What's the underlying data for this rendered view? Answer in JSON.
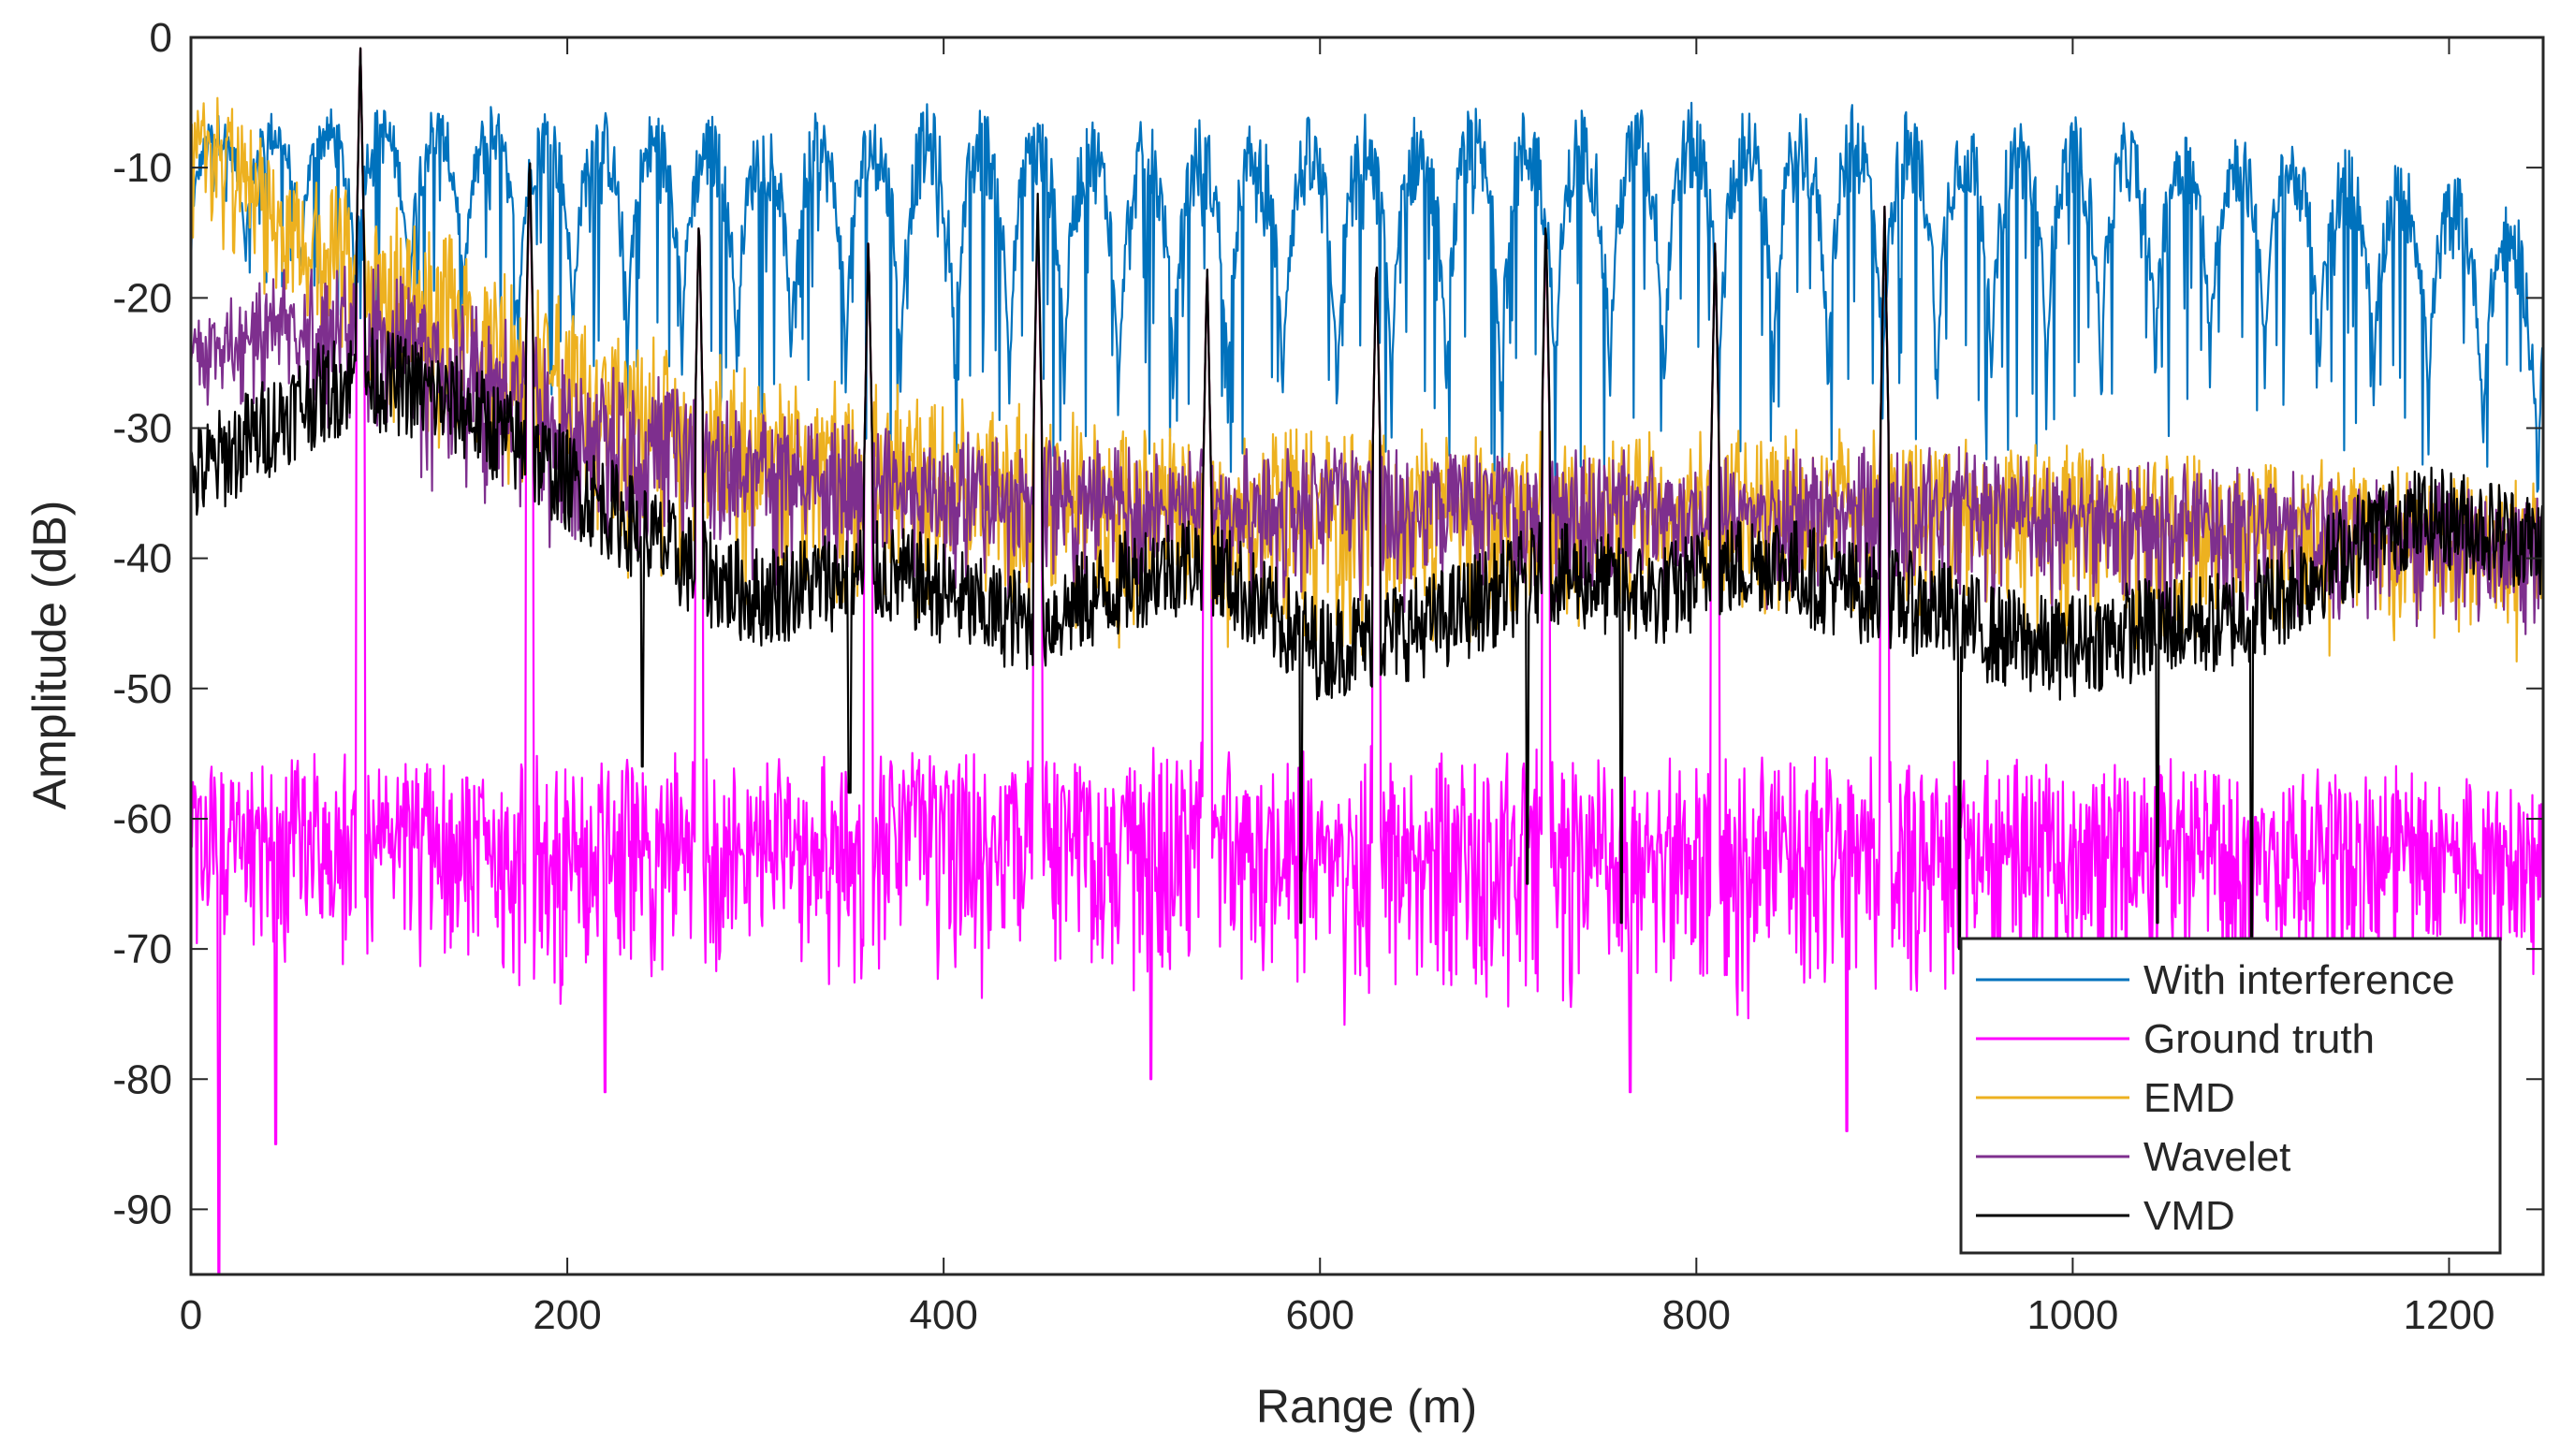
{
  "chart_data": {
    "type": "line",
    "title": "",
    "xlabel": "Range (m)",
    "ylabel": "Amplitude (dB)",
    "xlim": [
      0,
      1250
    ],
    "ylim": [
      -95,
      0
    ],
    "xticks": [
      0,
      200,
      400,
      600,
      800,
      1000,
      1200
    ],
    "xtick_labels": [
      "0",
      "200",
      "400",
      "600",
      "800",
      "1000",
      "1200"
    ],
    "yticks": [
      0,
      -10,
      -20,
      -30,
      -40,
      -50,
      -60,
      -70,
      -80,
      -90
    ],
    "ytick_labels": [
      "0",
      "-10",
      "-20",
      "-30",
      "-40",
      "-50",
      "-60",
      "-70",
      "-80",
      "-90"
    ],
    "grid": false,
    "legend_position": "bottom-right",
    "target_peaks_m": [
      90,
      180,
      270,
      360,
      450,
      540,
      630,
      720,
      810,
      900
    ],
    "series": [
      {
        "name": "With interference",
        "color": "#0072BD",
        "upper_envelope": {
          "x": [
            0,
            100,
            200,
            300,
            400,
            500,
            600,
            700,
            800,
            900,
            1000,
            1100,
            1200,
            1250
          ],
          "y": [
            -6,
            -5,
            -5,
            -6,
            -5,
            -6,
            -6,
            -5,
            -5,
            -5,
            -6,
            -7,
            -10,
            -14
          ]
        },
        "lower_envelope": {
          "x": [
            0,
            100,
            200,
            300,
            400,
            500,
            600,
            700,
            800,
            900,
            1000,
            1100,
            1200,
            1250
          ],
          "y": [
            -18,
            -24,
            -28,
            -30,
            -32,
            -33,
            -34,
            -34,
            -33,
            -33,
            -32,
            -30,
            -34,
            -40
          ]
        },
        "lobe_period_m": 29
      },
      {
        "name": "Ground truth",
        "color": "#FF00FF",
        "upper_envelope": {
          "x": [
            0,
            200,
            400,
            600,
            800,
            1000,
            1250
          ],
          "y": [
            -55,
            -55,
            -54,
            -54,
            -55,
            -55,
            -56
          ]
        },
        "lower_envelope": {
          "x": [
            0,
            200,
            400,
            600,
            800,
            1000,
            1250
          ],
          "y": [
            -72,
            -75,
            -75,
            -76,
            -76,
            -75,
            -74
          ]
        },
        "deep_nulls": {
          "x": [
            15,
            45,
            220,
            510,
            765,
            880,
            1090
          ],
          "y": [
            -95,
            -85,
            -81,
            -80,
            -81,
            -84,
            -79
          ]
        },
        "peaks": {
          "x": [
            90,
            180,
            270,
            360,
            450,
            540,
            630,
            720,
            810,
            900
          ],
          "y": [
            0,
            -9,
            -13,
            -15,
            -13,
            -17,
            -16,
            -14,
            -15,
            -13
          ]
        }
      },
      {
        "name": "EMD",
        "color": "#EDB120",
        "upper_envelope": {
          "x": [
            0,
            10,
            50,
            100,
            150,
            200,
            300,
            400,
            500,
            600,
            700,
            800,
            900,
            1000,
            1100,
            1200,
            1250
          ],
          "y": [
            -5,
            -2,
            -10,
            -12,
            -15,
            -20,
            -25,
            -27,
            -29,
            -30,
            -30,
            -30,
            -30,
            -31,
            -32,
            -33,
            -34
          ]
        },
        "lower_envelope": {
          "x": [
            0,
            100,
            200,
            300,
            400,
            500,
            600,
            700,
            800,
            900,
            1000,
            1100,
            1200,
            1250
          ],
          "y": [
            -18,
            -30,
            -40,
            -45,
            -47,
            -48,
            -48,
            -47,
            -46,
            -46,
            -47,
            -48,
            -48,
            -50
          ]
        },
        "peaks": {
          "x": [
            90,
            180,
            270,
            360,
            450,
            540,
            630,
            720,
            810,
            900
          ],
          "y": [
            0,
            -9,
            -13,
            -15,
            -13,
            -17,
            -16,
            -14,
            -15,
            -13
          ]
        }
      },
      {
        "name": "Wavelet",
        "color": "#7E2F8E",
        "upper_envelope": {
          "x": [
            0,
            50,
            100,
            150,
            200,
            300,
            400,
            500,
            600,
            700,
            800,
            900,
            1000,
            1100,
            1200,
            1250
          ],
          "y": [
            -22,
            -17,
            -17,
            -20,
            -24,
            -28,
            -30,
            -31,
            -31,
            -31,
            -32,
            -31,
            -32,
            -33,
            -34,
            -35
          ]
        },
        "lower_envelope": {
          "x": [
            0,
            100,
            200,
            300,
            400,
            500,
            600,
            700,
            800,
            900,
            1000,
            1100,
            1200,
            1250
          ],
          "y": [
            -28,
            -33,
            -40,
            -43,
            -44,
            -44,
            -45,
            -45,
            -44,
            -44,
            -45,
            -46,
            -46,
            -47
          ]
        },
        "peaks": {
          "x": [
            90,
            180,
            270,
            360,
            450,
            540,
            630,
            720,
            810,
            900
          ],
          "y": [
            0,
            -9,
            -13,
            -15,
            -13,
            -17,
            -16,
            -14,
            -15,
            -13
          ]
        }
      },
      {
        "name": "VMD",
        "color": "#000000",
        "mean_curve": {
          "x": [
            0,
            30,
            60,
            90,
            120,
            150,
            180,
            210,
            240,
            270,
            300,
            330,
            360,
            390,
            420,
            450,
            480,
            510,
            540,
            570,
            600,
            630,
            660,
            690,
            720,
            750,
            780,
            810,
            840,
            870,
            900,
            930,
            960,
            990,
            1020,
            1050,
            1080,
            1110,
            1140,
            1170,
            1200,
            1230,
            1250
          ],
          "y": [
            -34,
            -31,
            -28,
            -26,
            -27,
            -29,
            -32,
            -35,
            -38,
            -41,
            -43,
            -42,
            -41,
            -42,
            -44,
            -45,
            -43,
            -41,
            -40,
            -44,
            -47,
            -46,
            -45,
            -43,
            -41,
            -42,
            -43,
            -41,
            -40,
            -42,
            -43,
            -44,
            -46,
            -47,
            -46,
            -45,
            -45,
            -43,
            -40,
            -37,
            -37,
            -38,
            -39
          ]
        },
        "noise_spread_db": 4,
        "peaks": {
          "x": [
            90,
            180,
            270,
            360,
            450,
            540,
            630,
            720,
            810,
            900
          ],
          "y": [
            0,
            -8,
            -13,
            -15,
            -12,
            -17,
            -16,
            -13,
            -15,
            -13
          ]
        },
        "nulls": {
          "x": [
            240,
            350,
            590,
            710,
            760,
            940,
            1045,
            1095
          ],
          "y": [
            -56,
            -58,
            -68,
            -65,
            -68,
            -70,
            -68,
            -75
          ]
        }
      }
    ]
  }
}
